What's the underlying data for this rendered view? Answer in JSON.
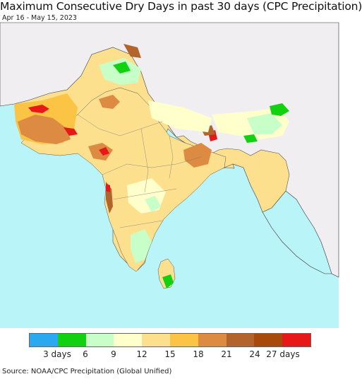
{
  "header": {
    "title": "Maximum Consecutive Dry Days in past 30 days (CPC Precipitation)",
    "date_range": "Apr 16 - May 15, 2023"
  },
  "legend": {
    "colors": [
      "#2aa8f0",
      "#11d111",
      "#c8ffc8",
      "#ffffcc",
      "#fde08e",
      "#fbc444",
      "#dd8a42",
      "#b2642c",
      "#a84a0a",
      "#e81818"
    ],
    "ticks": [
      "3 days",
      "6",
      "9",
      "12",
      "15",
      "18",
      "21",
      "24",
      "27 days"
    ]
  },
  "map": {
    "ocean_color": "#b8f4f8",
    "land_outside_color": "#f1eef2"
  },
  "footer": {
    "source": "Source: NOAA/CPC Precipitation (Global Unified)"
  }
}
